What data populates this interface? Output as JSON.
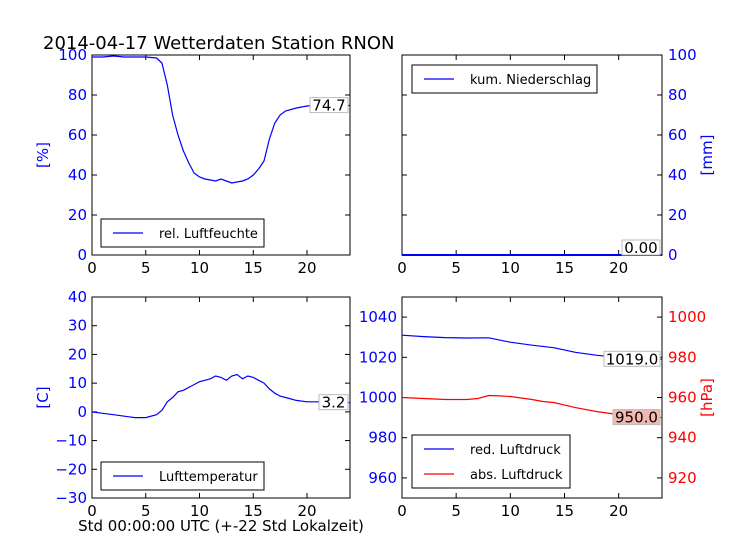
{
  "title": "2014-04-17 Wetterdaten Station RNON",
  "xlabel": "Std 00:00:00 UTC (+-22 Std Lokalzeit)",
  "colors": {
    "blue": "#0000ff",
    "red": "#ff0000",
    "label_bg_red": "#f4b8b0"
  },
  "chart_data": [
    {
      "type": "line",
      "panel": "top-left",
      "ylabel": "[%]",
      "xlim": [
        0,
        24
      ],
      "ylim": [
        0,
        100
      ],
      "xticks": [
        "0",
        "5",
        "10",
        "15",
        "20"
      ],
      "yticks": [
        "0",
        "20",
        "40",
        "60",
        "80",
        "100"
      ],
      "legend": "lower-left",
      "last_value_label": "74.7",
      "series": [
        {
          "name": "rel. Luftfeuchte",
          "color": "#0000ff",
          "x": [
            0,
            1,
            2,
            3,
            4,
            5,
            6,
            6.5,
            7,
            7.5,
            8,
            8.5,
            9,
            9.5,
            10,
            10.5,
            11,
            11.5,
            12,
            12.5,
            13,
            13.5,
            14,
            14.5,
            15,
            15.5,
            16,
            16.5,
            17,
            17.5,
            18,
            19,
            20,
            21,
            22,
            23,
            24
          ],
          "y": [
            99,
            99,
            99.5,
            99,
            99,
            99,
            98.5,
            96,
            85,
            70,
            60,
            52,
            46,
            41,
            39,
            38,
            37.5,
            37,
            38,
            37,
            36,
            36.5,
            37,
            38,
            40,
            43,
            47,
            58,
            66,
            70,
            72,
            73.5,
            74.5,
            75,
            76,
            75.5,
            74.7
          ]
        }
      ]
    },
    {
      "type": "line",
      "panel": "top-right",
      "ylabel": "[mm]",
      "xlim": [
        0,
        24
      ],
      "ylim": [
        0,
        100
      ],
      "xticks": [
        "0",
        "5",
        "10",
        "15",
        "20"
      ],
      "yticks": [
        "0",
        "20",
        "40",
        "60",
        "80",
        "100"
      ],
      "legend": "upper-left",
      "last_value_label": "0.00",
      "series": [
        {
          "name": "kum. Niederschlag",
          "color": "#0000ff",
          "x": [
            0,
            24
          ],
          "y": [
            0,
            0
          ]
        }
      ]
    },
    {
      "type": "line",
      "panel": "bottom-left",
      "ylabel": "[C]",
      "xlim": [
        0,
        24
      ],
      "ylim": [
        -30,
        40
      ],
      "xticks": [
        "0",
        "5",
        "10",
        "15",
        "20"
      ],
      "yticks": [
        "−30",
        "−20",
        "−10",
        "0",
        "10",
        "20",
        "30",
        "40"
      ],
      "legend": "lower-left",
      "last_value_label": "3.2",
      "series": [
        {
          "name": "Lufttemperatur",
          "color": "#0000ff",
          "x": [
            0,
            1,
            2,
            3,
            4,
            5,
            6,
            6.5,
            7,
            7.5,
            8,
            8.5,
            9,
            9.5,
            10,
            10.5,
            11,
            11.5,
            12,
            12.5,
            13,
            13.5,
            14,
            14.5,
            15,
            15.5,
            16,
            16.5,
            17,
            17.5,
            18,
            19,
            20,
            21,
            22,
            23,
            24
          ],
          "y": [
            0,
            -0.5,
            -1,
            -1.5,
            -2,
            -2,
            -1,
            0.5,
            3.5,
            5,
            7,
            7.5,
            8.5,
            9.5,
            10.5,
            11,
            11.5,
            12.5,
            12,
            11,
            12.5,
            13,
            11.5,
            12.5,
            12,
            11,
            10,
            8,
            6.5,
            5.5,
            5,
            4,
            3.5,
            3.5,
            3.8,
            3.5,
            3.2
          ]
        }
      ]
    },
    {
      "type": "line",
      "panel": "bottom-right",
      "ylabel": "[hPa]",
      "xlim": [
        0,
        24
      ],
      "ylim_left": [
        950,
        1050
      ],
      "ylim_right": [
        910,
        1010
      ],
      "xticks": [
        "0",
        "5",
        "10",
        "15",
        "20"
      ],
      "yticks_left": [
        "960",
        "980",
        "1000",
        "1020",
        "1040"
      ],
      "yticks_right": [
        "920",
        "940",
        "960",
        "980",
        "1000"
      ],
      "legend": "lower-left",
      "series": [
        {
          "name": "red. Luftdruck",
          "color": "#0000ff",
          "axis": "left",
          "last_value_label": "1019.0",
          "x": [
            0,
            2,
            4,
            6,
            8,
            10,
            12,
            14,
            16,
            18,
            20,
            22,
            24
          ],
          "y": [
            1031,
            1030.3,
            1029.8,
            1029.6,
            1029.7,
            1027.5,
            1026,
            1024.8,
            1022.5,
            1021,
            1020,
            1019.5,
            1019
          ]
        },
        {
          "name": "abs. Luftdruck",
          "color": "#ff0000",
          "axis": "right",
          "last_value_label": "950.0",
          "x": [
            0,
            2,
            4,
            6,
            7,
            8,
            9,
            10,
            12,
            13,
            14,
            16,
            18,
            20,
            22,
            24
          ],
          "y": [
            960,
            959.5,
            959,
            959,
            959.5,
            961,
            960.8,
            960.5,
            959,
            958,
            957.5,
            955,
            953,
            951.5,
            950.5,
            950
          ]
        }
      ]
    }
  ]
}
